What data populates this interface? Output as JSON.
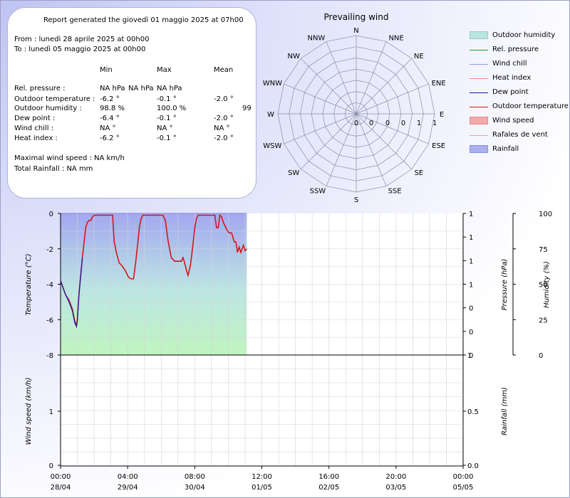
{
  "report": {
    "title": "Report generated the giovedì 01 maggio 2025 at 07h00",
    "from": "From : lunedì 28 aprile 2025 at 00h00",
    "to": "To : lunedì 05 maggio 2025 at 00h00",
    "col_min": "Min",
    "col_max": "Max",
    "col_mean": "Mean",
    "rows": [
      {
        "label": "Rel. pressure :",
        "min": "NA hPa",
        "min_extra": "NA hPa",
        "max": "NA hPa",
        "mean": ""
      },
      {
        "label": "Outdoor temperature :",
        "min": "-6.2 °",
        "min_extra": "",
        "max": "-0.1 °",
        "mean": "-2.0 °"
      },
      {
        "label": "Outdoor humidity :",
        "min": "98.8 %",
        "min_extra": "",
        "max": "100.0 %",
        "mean": "99"
      },
      {
        "label": "Dew point :",
        "min": "-6.4 °",
        "min_extra": "",
        "max": "-0.1 °",
        "mean": "-2.0 °"
      },
      {
        "label": "Wind chill :",
        "min": "NA °",
        "min_extra": "",
        "max": "NA °",
        "mean": "NA °"
      },
      {
        "label": "Heat index :",
        "min": "-6.2 °",
        "min_extra": "",
        "max": "-0.1 °",
        "mean": "-2.0 °"
      }
    ],
    "max_wind": "Maximal wind speed : NA km/h",
    "total_rain": "Total Rainfall : NA mm"
  },
  "wind_rose": {
    "title": "Prevailing wind",
    "directions": [
      "N",
      "NNE",
      "NE",
      "ENE",
      "E",
      "ESE",
      "SE",
      "SSE",
      "S",
      "SSW",
      "SW",
      "WSW",
      "W",
      "WNW",
      "NW",
      "NNW"
    ],
    "radial_labels": [
      "0",
      "0",
      "0",
      "0",
      "1",
      "1",
      "1"
    ]
  },
  "legend": [
    {
      "label": "Outdoor humidity",
      "kind": "box",
      "color": "#b9e6df",
      "border": "#9ac9c4"
    },
    {
      "label": "Rel. pressure",
      "kind": "line",
      "color": "#1aa31a"
    },
    {
      "label": "Wind chill",
      "kind": "line",
      "color": "#9a9ae6"
    },
    {
      "label": "Heat index",
      "kind": "line",
      "color": "#f08a8a"
    },
    {
      "label": "Dew point",
      "kind": "line",
      "color": "#1a1a9c"
    },
    {
      "label": "Outdoor temperature",
      "kind": "line",
      "color": "#d01818"
    },
    {
      "label": "Wind speed",
      "kind": "box",
      "color": "#f2aaaa",
      "border": "#e38d8d"
    },
    {
      "label": "Rafales de vent",
      "kind": "line",
      "color": "#f0a0a0"
    },
    {
      "label": "Rainfall",
      "kind": "box",
      "color": "#aab0f2",
      "border": "#8c92dc"
    }
  ],
  "chart_data": {
    "type": "line",
    "x_ticks": [
      {
        "time": "00:00",
        "date": "28/04"
      },
      {
        "time": "04:00",
        "date": "29/04"
      },
      {
        "time": "08:00",
        "date": "30/04"
      },
      {
        "time": "12:00",
        "date": "01/05"
      },
      {
        "time": "16:00",
        "date": "02/05"
      },
      {
        "time": "20:00",
        "date": "03/05"
      },
      {
        "time": "00:00",
        "date": "05/05"
      }
    ],
    "xlim": [
      0,
      24
    ],
    "temperature": {
      "ylabel": "Temperature (°C)",
      "ylim": [
        -8,
        0
      ],
      "y_ticks": [
        "0",
        "-2",
        "-4",
        "-6",
        "-8"
      ],
      "series": [
        {
          "name": "Outdoor temperature",
          "x": [
            0,
            0.15,
            0.3,
            0.5,
            0.7,
            0.85,
            0.95,
            1.0,
            1.1,
            1.3,
            1.5,
            1.6,
            1.7,
            1.8,
            1.9,
            2.0,
            2.1,
            2.2,
            2.3,
            2.4,
            2.6,
            2.9,
            3.1,
            3.2,
            3.35,
            3.5,
            3.7,
            3.9,
            4.05,
            4.2,
            4.35,
            4.5,
            4.6,
            4.7,
            4.8,
            4.9,
            5.1,
            5.3,
            5.6,
            6.1,
            6.25,
            6.4,
            6.6,
            6.8,
            7.0,
            7.2,
            7.3,
            7.4,
            7.5,
            7.6,
            7.75,
            7.9,
            8.0,
            8.1,
            8.2,
            8.25,
            8.3,
            8.4,
            8.5,
            8.75,
            9.0,
            9.2,
            9.3,
            9.4,
            9.5,
            9.6,
            9.7,
            9.8,
            9.9,
            10.05,
            10.2,
            10.35,
            10.45,
            10.55,
            10.65,
            10.75,
            10.9,
            11.0,
            11.1
          ],
          "values": [
            -3.8,
            -4.2,
            -4.6,
            -4.9,
            -5.4,
            -6.1,
            -6.3,
            -6.0,
            -4.5,
            -2.5,
            -0.8,
            -0.5,
            -0.4,
            -0.4,
            -0.2,
            -0.1,
            -0.1,
            -0.1,
            -0.1,
            -0.1,
            -0.1,
            -0.1,
            -0.1,
            -1.6,
            -2.3,
            -2.8,
            -3.0,
            -3.3,
            -3.6,
            -3.7,
            -3.7,
            -2.6,
            -1.7,
            -0.8,
            -0.3,
            -0.1,
            -0.1,
            -0.1,
            -0.1,
            -0.1,
            -0.4,
            -1.5,
            -2.5,
            -2.7,
            -2.7,
            -2.7,
            -2.5,
            -2.8,
            -3.2,
            -3.5,
            -2.9,
            -1.7,
            -0.8,
            -0.3,
            -0.1,
            -0.1,
            -0.1,
            -0.1,
            -0.1,
            -0.1,
            -0.1,
            -0.1,
            -0.8,
            -0.8,
            -0.1,
            -0.2,
            -0.5,
            -0.7,
            -0.9,
            -1.1,
            -1.1,
            -1.6,
            -1.6,
            -2.2,
            -1.9,
            -2.2,
            -1.8,
            -2.1,
            -2.0
          ]
        },
        {
          "name": "Dew point",
          "x": [
            0,
            0.15,
            0.3,
            0.5,
            0.7,
            0.85,
            0.95,
            1.0,
            1.1,
            1.3
          ],
          "values": [
            -3.8,
            -4.2,
            -4.6,
            -5.0,
            -5.5,
            -6.2,
            -6.4,
            -6.1,
            -4.6,
            -2.5
          ]
        }
      ]
    },
    "humidity": {
      "ylabel": "Humidity (%)",
      "ylim": [
        0,
        100
      ],
      "y_ticks": [
        "100",
        "75",
        "50",
        "25",
        "0"
      ],
      "x_end": 11.1,
      "value": 100
    },
    "pressure": {
      "ylabel": "Pressure (hPa)",
      "y_ticks": [
        "1",
        "1",
        "1",
        "1",
        "0",
        "0",
        "0"
      ]
    },
    "wind": {
      "ylabel": "Wind speed (km/h)",
      "ylim": [
        0,
        2
      ],
      "y_ticks": [
        "1",
        "0"
      ]
    },
    "rain": {
      "ylabel": "Rainfall (mm)",
      "ylim": [
        0,
        1
      ],
      "y_ticks": [
        "1",
        "0.5",
        "0.0"
      ]
    }
  }
}
